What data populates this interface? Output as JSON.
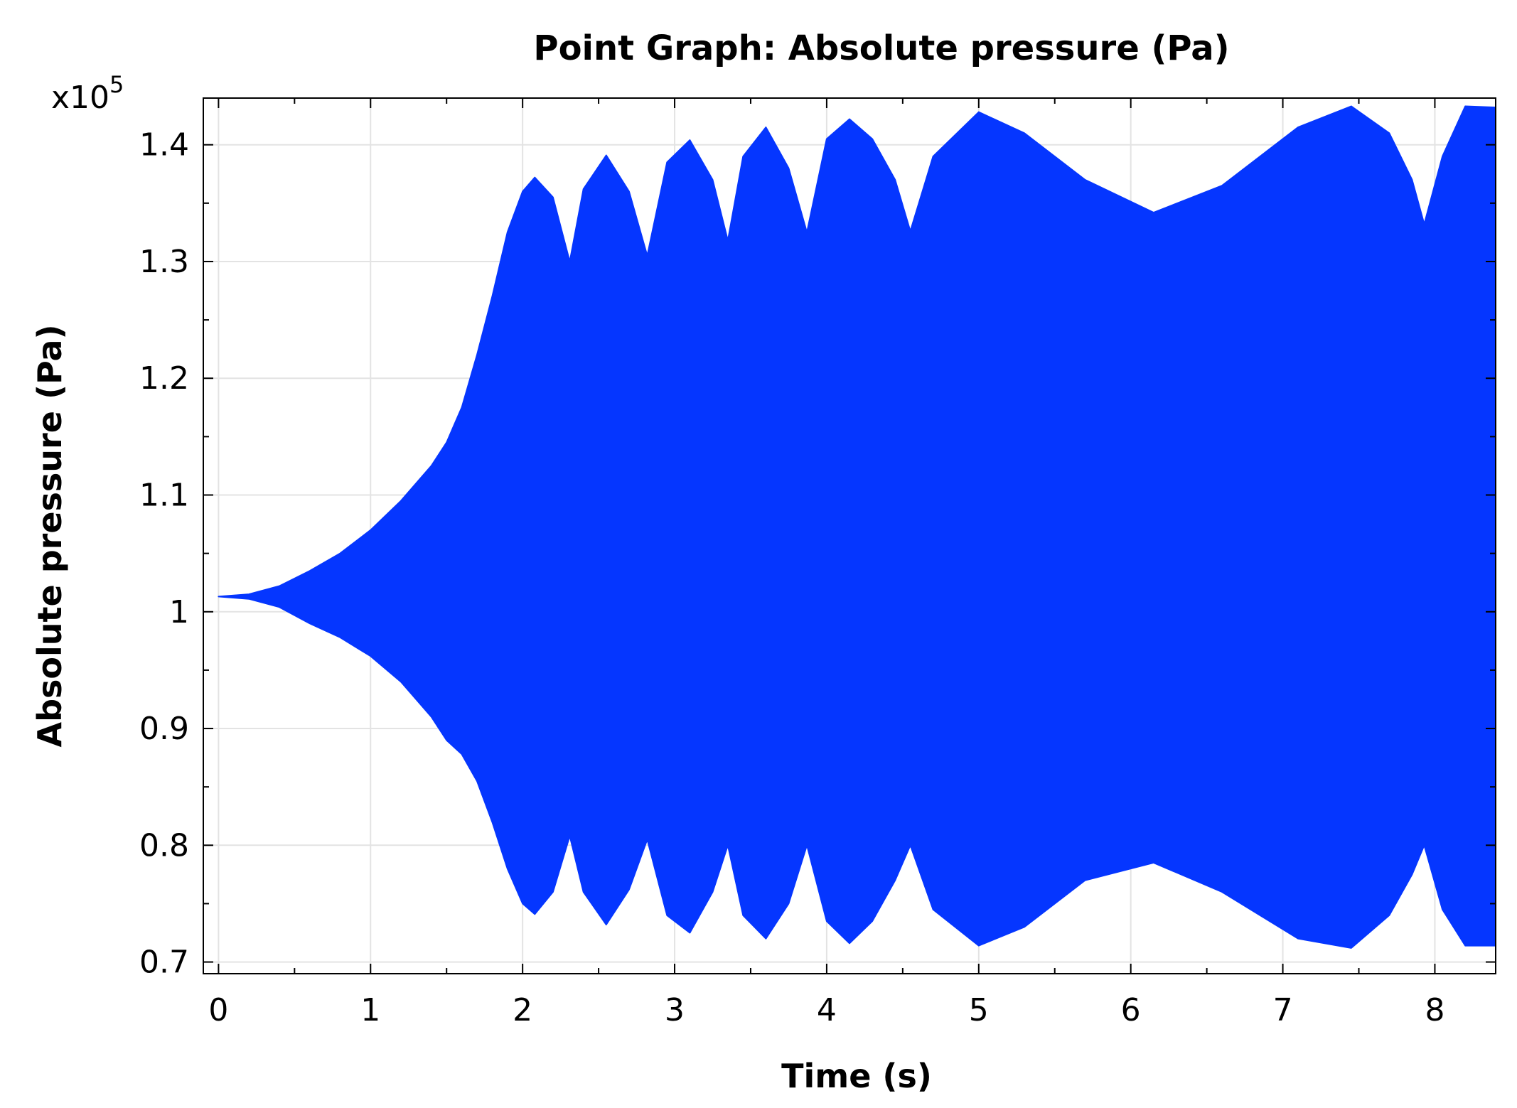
{
  "chart_data": {
    "type": "area",
    "title": "Point Graph: Absolute pressure (Pa)",
    "xlabel": "Time (s)",
    "ylabel": "Absolute pressure (Pa)",
    "y_multiplier": "x10",
    "y_multiplier_exponent": "5",
    "xlim": [
      -0.1,
      8.4
    ],
    "ylim": [
      0.69,
      1.44
    ],
    "x_ticks": [
      0,
      1,
      2,
      3,
      4,
      5,
      6,
      7,
      8
    ],
    "x_tick_labels": [
      "0",
      "1",
      "2",
      "3",
      "4",
      "5",
      "6",
      "7",
      "8"
    ],
    "y_ticks": [
      0.7,
      0.8,
      0.9,
      1.0,
      1.1,
      1.2,
      1.3,
      1.4
    ],
    "y_tick_labels": [
      "0.7",
      "0.8",
      "0.9",
      "1",
      "1.1",
      "1.2",
      "1.3",
      "1.4"
    ],
    "grid": true,
    "series": [
      {
        "color": "#0536ff",
        "description_envelope": "oscillating signal drawn as filled band between lower and upper envelope",
        "upper": [
          [
            0.0,
            1.013
          ],
          [
            0.2,
            1.015
          ],
          [
            0.4,
            1.022
          ],
          [
            0.6,
            1.035
          ],
          [
            0.8,
            1.05
          ],
          [
            1.0,
            1.07
          ],
          [
            1.2,
            1.095
          ],
          [
            1.4,
            1.125
          ],
          [
            1.5,
            1.145
          ],
          [
            1.6,
            1.175
          ],
          [
            1.7,
            1.22
          ],
          [
            1.8,
            1.27
          ],
          [
            1.9,
            1.325
          ],
          [
            2.0,
            1.36
          ],
          [
            2.08,
            1.372
          ],
          [
            2.2,
            1.355
          ],
          [
            2.31,
            1.3
          ],
          [
            2.4,
            1.362
          ],
          [
            2.55,
            1.391
          ],
          [
            2.7,
            1.36
          ],
          [
            2.82,
            1.305
          ],
          [
            2.95,
            1.385
          ],
          [
            3.1,
            1.404
          ],
          [
            3.25,
            1.37
          ],
          [
            3.35,
            1.318
          ],
          [
            3.45,
            1.39
          ],
          [
            3.6,
            1.415
          ],
          [
            3.75,
            1.38
          ],
          [
            3.87,
            1.325
          ],
          [
            4.0,
            1.405
          ],
          [
            4.15,
            1.422
          ],
          [
            4.3,
            1.405
          ],
          [
            4.45,
            1.37
          ],
          [
            4.55,
            1.326
          ],
          [
            4.7,
            1.39
          ],
          [
            5.0,
            1.428
          ],
          [
            5.3,
            1.41
          ],
          [
            5.7,
            1.37
          ],
          [
            6.15,
            1.342
          ],
          [
            6.6,
            1.365
          ],
          [
            7.1,
            1.415
          ],
          [
            7.45,
            1.433
          ],
          [
            7.7,
            1.41
          ],
          [
            7.85,
            1.37
          ],
          [
            7.93,
            1.332
          ],
          [
            8.05,
            1.39
          ],
          [
            8.2,
            1.433
          ],
          [
            8.4,
            1.432
          ]
        ],
        "lower": [
          [
            0.0,
            1.013
          ],
          [
            0.2,
            1.011
          ],
          [
            0.4,
            1.004
          ],
          [
            0.6,
            0.99
          ],
          [
            0.8,
            0.978
          ],
          [
            1.0,
            0.962
          ],
          [
            1.2,
            0.94
          ],
          [
            1.4,
            0.91
          ],
          [
            1.5,
            0.89
          ],
          [
            1.6,
            0.878
          ],
          [
            1.7,
            0.855
          ],
          [
            1.8,
            0.82
          ],
          [
            1.9,
            0.78
          ],
          [
            2.0,
            0.75
          ],
          [
            2.08,
            0.741
          ],
          [
            2.2,
            0.76
          ],
          [
            2.31,
            0.808
          ],
          [
            2.4,
            0.76
          ],
          [
            2.55,
            0.732
          ],
          [
            2.7,
            0.762
          ],
          [
            2.82,
            0.805
          ],
          [
            2.95,
            0.74
          ],
          [
            3.1,
            0.725
          ],
          [
            3.25,
            0.76
          ],
          [
            3.35,
            0.8
          ],
          [
            3.45,
            0.74
          ],
          [
            3.6,
            0.72
          ],
          [
            3.75,
            0.75
          ],
          [
            3.87,
            0.8
          ],
          [
            4.0,
            0.735
          ],
          [
            4.15,
            0.716
          ],
          [
            4.3,
            0.735
          ],
          [
            4.45,
            0.77
          ],
          [
            4.55,
            0.8
          ],
          [
            4.7,
            0.745
          ],
          [
            5.0,
            0.714
          ],
          [
            5.3,
            0.73
          ],
          [
            5.7,
            0.77
          ],
          [
            6.15,
            0.785
          ],
          [
            6.6,
            0.76
          ],
          [
            7.1,
            0.72
          ],
          [
            7.45,
            0.712
          ],
          [
            7.7,
            0.74
          ],
          [
            7.85,
            0.775
          ],
          [
            7.93,
            0.8
          ],
          [
            8.05,
            0.745
          ],
          [
            8.2,
            0.714
          ],
          [
            8.4,
            0.714
          ]
        ]
      }
    ]
  }
}
